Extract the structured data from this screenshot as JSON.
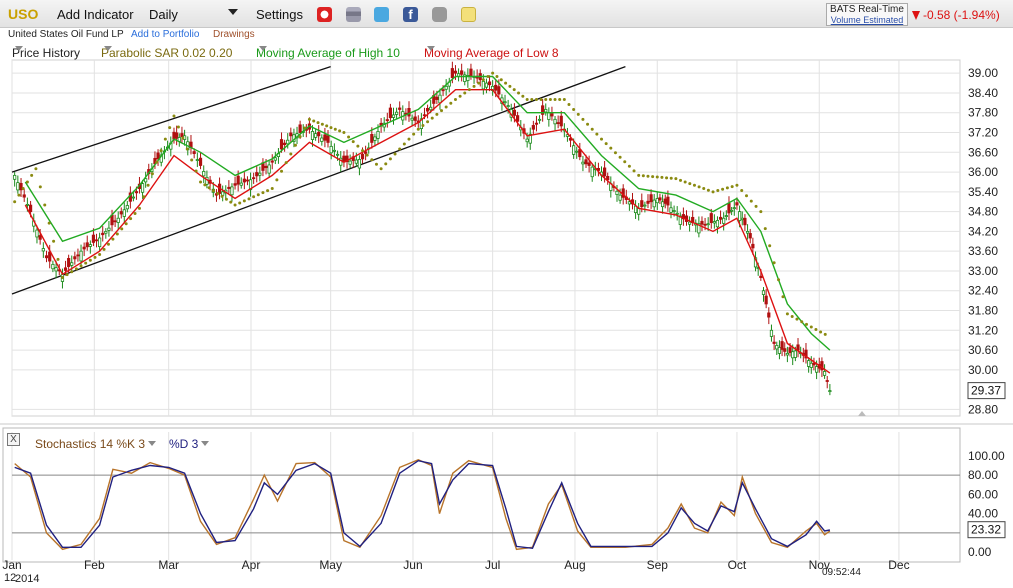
{
  "toolbar": {
    "symbol": "USO",
    "add_indicator": "Add Indicator",
    "timeframe": "Daily",
    "settings": "Settings",
    "icons": [
      "alarm-clock-icon",
      "stack-icon",
      "twitter-icon",
      "facebook-icon",
      "camera-icon",
      "note-icon"
    ]
  },
  "quote": {
    "feed": "BATS Real-Time",
    "feed_sub": "Volume Estimated",
    "change": "-0.58 (-1.94%)",
    "down_color": "#dd1111"
  },
  "subbar": {
    "name": "United States Oil Fund LP",
    "add_portfolio": "Add to Portfolio",
    "drawings": "Drawings"
  },
  "legend": {
    "price_history": "Price History",
    "psar": "Parabolic SAR 0.02 0.20",
    "ma_high": "Moving Average of High 10",
    "ma_low": "Moving Average of Low 8"
  },
  "stoch_legend": {
    "k": "Stochastics 14 %K 3",
    "d": "%D 3",
    "close_box": "X"
  },
  "colors": {
    "up_candle": "#1a8a1a",
    "down_candle": "#b01010",
    "ma_high": "#22aa22",
    "ma_low": "#dd1111",
    "psar": "#8a8a10",
    "stoch_k": "#b8742a",
    "stoch_d": "#202080",
    "grid": "#e2e2e2"
  },
  "chart_data": [
    {
      "type": "candlestick",
      "title": "USO",
      "x_labels": [
        "Jan",
        "Feb",
        "Mar",
        "Apr",
        "May",
        "Jun",
        "Jul",
        "Aug",
        "Sep",
        "Oct",
        "Nov",
        "Dec"
      ],
      "year_label": "2014",
      "y_ticks": [
        39.0,
        38.4,
        37.8,
        37.2,
        36.6,
        36.0,
        35.4,
        34.8,
        34.2,
        33.6,
        33.0,
        32.4,
        31.8,
        31.2,
        30.6,
        30.0,
        29.37,
        28.8
      ],
      "last_price": "29.37",
      "ylim": [
        28.6,
        39.4
      ],
      "close_path": [
        [
          "2014-01-02",
          35.9
        ],
        [
          "2014-01-08",
          34.8
        ],
        [
          "2014-01-14",
          33.4
        ],
        [
          "2014-01-20",
          32.9
        ],
        [
          "2014-01-27",
          33.6
        ],
        [
          "2014-02-03",
          34.0
        ],
        [
          "2014-02-10",
          34.6
        ],
        [
          "2014-02-18",
          35.5
        ],
        [
          "2014-02-25",
          36.4
        ],
        [
          "2014-03-03",
          37.0
        ],
        [
          "2014-03-07",
          37.1
        ],
        [
          "2014-03-13",
          36.2
        ],
        [
          "2014-03-19",
          35.3
        ],
        [
          "2014-03-26",
          35.6
        ],
        [
          "2014-04-02",
          35.8
        ],
        [
          "2014-04-09",
          36.3
        ],
        [
          "2014-04-16",
          37.1
        ],
        [
          "2014-04-23",
          37.3
        ],
        [
          "2014-04-30",
          36.9
        ],
        [
          "2014-05-06",
          36.3
        ],
        [
          "2014-05-13",
          36.4
        ],
        [
          "2014-05-20",
          37.4
        ],
        [
          "2014-05-27",
          37.9
        ],
        [
          "2014-06-03",
          37.5
        ],
        [
          "2014-06-10",
          38.2
        ],
        [
          "2014-06-17",
          39.0
        ],
        [
          "2014-06-24",
          38.9
        ],
        [
          "2014-07-01",
          38.6
        ],
        [
          "2014-07-08",
          37.9
        ],
        [
          "2014-07-14",
          37.0
        ],
        [
          "2014-07-21",
          37.9
        ],
        [
          "2014-07-28",
          37.3
        ],
        [
          "2014-08-04",
          36.3
        ],
        [
          "2014-08-11",
          36.0
        ],
        [
          "2014-08-18",
          35.3
        ],
        [
          "2014-08-25",
          34.9
        ],
        [
          "2014-09-01",
          35.2
        ],
        [
          "2014-09-05",
          35.0
        ],
        [
          "2014-09-12",
          34.5
        ],
        [
          "2014-09-19",
          34.4
        ],
        [
          "2014-09-26",
          34.6
        ],
        [
          "2014-10-01",
          35.0
        ],
        [
          "2014-10-06",
          34.0
        ],
        [
          "2014-10-10",
          32.8
        ],
        [
          "2014-10-15",
          30.8
        ],
        [
          "2014-10-20",
          30.5
        ],
        [
          "2014-10-24",
          30.6
        ],
        [
          "2014-10-29",
          30.2
        ],
        [
          "2014-11-03",
          29.95
        ],
        [
          "2014-11-05",
          29.37
        ]
      ],
      "ma_high_10": [
        [
          "2014-01-06",
          35.7
        ],
        [
          "2014-01-20",
          33.9
        ],
        [
          "2014-02-03",
          34.3
        ],
        [
          "2014-02-18",
          35.6
        ],
        [
          "2014-03-03",
          37.0
        ],
        [
          "2014-03-13",
          36.6
        ],
        [
          "2014-03-26",
          35.9
        ],
        [
          "2014-04-09",
          36.4
        ],
        [
          "2014-04-23",
          37.4
        ],
        [
          "2014-05-06",
          36.9
        ],
        [
          "2014-05-20",
          37.4
        ],
        [
          "2014-06-03",
          37.9
        ],
        [
          "2014-06-17",
          38.9
        ],
        [
          "2014-07-01",
          38.9
        ],
        [
          "2014-07-14",
          37.8
        ],
        [
          "2014-07-28",
          37.8
        ],
        [
          "2014-08-11",
          36.5
        ],
        [
          "2014-08-25",
          35.5
        ],
        [
          "2014-09-08",
          35.3
        ],
        [
          "2014-09-22",
          34.8
        ],
        [
          "2014-10-01",
          35.2
        ],
        [
          "2014-10-10",
          34.2
        ],
        [
          "2014-10-20",
          32.0
        ],
        [
          "2014-10-29",
          31.1
        ],
        [
          "2014-11-05",
          30.6
        ]
      ],
      "ma_low_8": [
        [
          "2014-01-06",
          35.0
        ],
        [
          "2014-01-20",
          32.9
        ],
        [
          "2014-02-03",
          33.6
        ],
        [
          "2014-02-18",
          35.0
        ],
        [
          "2014-03-03",
          36.5
        ],
        [
          "2014-03-13",
          35.9
        ],
        [
          "2014-03-26",
          35.2
        ],
        [
          "2014-04-09",
          35.9
        ],
        [
          "2014-04-23",
          36.9
        ],
        [
          "2014-05-06",
          36.3
        ],
        [
          "2014-05-20",
          36.9
        ],
        [
          "2014-06-03",
          37.5
        ],
        [
          "2014-06-17",
          38.5
        ],
        [
          "2014-07-01",
          38.5
        ],
        [
          "2014-07-14",
          37.1
        ],
        [
          "2014-07-28",
          37.3
        ],
        [
          "2014-08-11",
          35.9
        ],
        [
          "2014-08-25",
          34.9
        ],
        [
          "2014-09-08",
          34.7
        ],
        [
          "2014-09-22",
          34.2
        ],
        [
          "2014-10-01",
          34.6
        ],
        [
          "2014-10-10",
          33.0
        ],
        [
          "2014-10-20",
          30.8
        ],
        [
          "2014-10-29",
          30.3
        ],
        [
          "2014-11-05",
          29.9
        ]
      ],
      "psar_points": [
        [
          "2014-01-02",
          35.1
        ],
        [
          "2014-01-10",
          36.1
        ],
        [
          "2014-01-20",
          32.8
        ],
        [
          "2014-02-03",
          33.5
        ],
        [
          "2014-02-18",
          34.9
        ],
        [
          "2014-03-03",
          37.7
        ],
        [
          "2014-03-13",
          35.7
        ],
        [
          "2014-03-26",
          35.0
        ],
        [
          "2014-04-09",
          35.5
        ],
        [
          "2014-04-23",
          37.6
        ],
        [
          "2014-05-06",
          37.2
        ],
        [
          "2014-05-20",
          36.1
        ],
        [
          "2014-06-03",
          37.3
        ],
        [
          "2014-06-17",
          38.2
        ],
        [
          "2014-07-01",
          39.0
        ],
        [
          "2014-07-14",
          38.2
        ],
        [
          "2014-07-28",
          38.2
        ],
        [
          "2014-08-11",
          37.0
        ],
        [
          "2014-08-25",
          35.9
        ],
        [
          "2014-09-08",
          35.8
        ],
        [
          "2014-09-22",
          35.4
        ],
        [
          "2014-10-01",
          35.6
        ],
        [
          "2014-10-10",
          34.8
        ],
        [
          "2014-10-20",
          31.7
        ],
        [
          "2014-10-29",
          31.3
        ],
        [
          "2014-11-05",
          31.0
        ]
      ],
      "trend_channel": {
        "upper": [
          [
            "2014-01-01",
            36.0
          ],
          [
            "2014-05-01",
            39.2
          ]
        ],
        "lower": [
          [
            "2014-01-01",
            32.3
          ],
          [
            "2014-08-20",
            39.2
          ]
        ]
      }
    },
    {
      "type": "line",
      "title": "Stochastics 14 %K 3 %D 3",
      "y_ticks": [
        100.0,
        80.0,
        60.0,
        40.0,
        20.0,
        0.0
      ],
      "ylim": [
        -4,
        104
      ],
      "reference_lines": [
        80,
        20
      ],
      "last_value": "23.32",
      "series": [
        {
          "name": "%K",
          "points": [
            [
              "2014-01-02",
              92
            ],
            [
              "2014-01-08",
              78
            ],
            [
              "2014-01-14",
              20
            ],
            [
              "2014-01-20",
              3
            ],
            [
              "2014-01-27",
              8
            ],
            [
              "2014-02-03",
              35
            ],
            [
              "2014-02-08",
              86
            ],
            [
              "2014-02-15",
              82
            ],
            [
              "2014-02-22",
              93
            ],
            [
              "2014-03-01",
              87
            ],
            [
              "2014-03-07",
              80
            ],
            [
              "2014-03-13",
              32
            ],
            [
              "2014-03-19",
              8
            ],
            [
              "2014-03-26",
              15
            ],
            [
              "2014-04-02",
              55
            ],
            [
              "2014-04-06",
              80
            ],
            [
              "2014-04-11",
              53
            ],
            [
              "2014-04-18",
              92
            ],
            [
              "2014-04-25",
              93
            ],
            [
              "2014-05-01",
              78
            ],
            [
              "2014-05-06",
              12
            ],
            [
              "2014-05-12",
              5
            ],
            [
              "2014-05-20",
              38
            ],
            [
              "2014-05-27",
              88
            ],
            [
              "2014-06-03",
              96
            ],
            [
              "2014-06-08",
              90
            ],
            [
              "2014-06-11",
              40
            ],
            [
              "2014-06-16",
              82
            ],
            [
              "2014-06-22",
              95
            ],
            [
              "2014-07-01",
              88
            ],
            [
              "2014-07-06",
              35
            ],
            [
              "2014-07-10",
              3
            ],
            [
              "2014-07-16",
              5
            ],
            [
              "2014-07-22",
              50
            ],
            [
              "2014-07-27",
              70
            ],
            [
              "2014-08-02",
              22
            ],
            [
              "2014-08-07",
              5
            ],
            [
              "2014-08-20",
              5
            ],
            [
              "2014-08-30",
              8
            ],
            [
              "2014-09-05",
              25
            ],
            [
              "2014-09-10",
              50
            ],
            [
              "2014-09-15",
              25
            ],
            [
              "2014-09-20",
              20
            ],
            [
              "2014-09-25",
              52
            ],
            [
              "2014-09-30",
              38
            ],
            [
              "2014-10-03",
              78
            ],
            [
              "2014-10-08",
              40
            ],
            [
              "2014-10-14",
              10
            ],
            [
              "2014-10-20",
              5
            ],
            [
              "2014-10-27",
              22
            ],
            [
              "2014-10-31",
              30
            ],
            [
              "2014-11-03",
              18
            ],
            [
              "2014-11-05",
              22
            ]
          ]
        },
        {
          "name": "%D",
          "points": [
            [
              "2014-01-02",
              88
            ],
            [
              "2014-01-08",
              82
            ],
            [
              "2014-01-14",
              28
            ],
            [
              "2014-01-20",
              5
            ],
            [
              "2014-01-27",
              5
            ],
            [
              "2014-02-03",
              28
            ],
            [
              "2014-02-08",
              78
            ],
            [
              "2014-02-15",
              85
            ],
            [
              "2014-02-22",
              90
            ],
            [
              "2014-03-01",
              88
            ],
            [
              "2014-03-07",
              82
            ],
            [
              "2014-03-13",
              40
            ],
            [
              "2014-03-19",
              10
            ],
            [
              "2014-03-26",
              12
            ],
            [
              "2014-04-02",
              45
            ],
            [
              "2014-04-06",
              72
            ],
            [
              "2014-04-11",
              60
            ],
            [
              "2014-04-18",
              85
            ],
            [
              "2014-04-25",
              92
            ],
            [
              "2014-05-01",
              82
            ],
            [
              "2014-05-06",
              20
            ],
            [
              "2014-05-12",
              6
            ],
            [
              "2014-05-20",
              30
            ],
            [
              "2014-05-27",
              82
            ],
            [
              "2014-06-03",
              95
            ],
            [
              "2014-06-08",
              92
            ],
            [
              "2014-06-11",
              50
            ],
            [
              "2014-06-16",
              75
            ],
            [
              "2014-06-22",
              92
            ],
            [
              "2014-07-01",
              90
            ],
            [
              "2014-07-06",
              45
            ],
            [
              "2014-07-10",
              6
            ],
            [
              "2014-07-16",
              4
            ],
            [
              "2014-07-22",
              42
            ],
            [
              "2014-07-27",
              72
            ],
            [
              "2014-08-02",
              30
            ],
            [
              "2014-08-07",
              6
            ],
            [
              "2014-08-20",
              6
            ],
            [
              "2014-08-30",
              6
            ],
            [
              "2014-09-05",
              20
            ],
            [
              "2014-09-10",
              46
            ],
            [
              "2014-09-15",
              30
            ],
            [
              "2014-09-20",
              22
            ],
            [
              "2014-09-25",
              48
            ],
            [
              "2014-09-30",
              42
            ],
            [
              "2014-10-03",
              72
            ],
            [
              "2014-10-08",
              45
            ],
            [
              "2014-10-14",
              14
            ],
            [
              "2014-10-20",
              6
            ],
            [
              "2014-10-27",
              18
            ],
            [
              "2014-10-31",
              32
            ],
            [
              "2014-11-03",
              22
            ],
            [
              "2014-11-05",
              23
            ]
          ]
        }
      ]
    }
  ],
  "footer": {
    "year": "2014",
    "axis_marker": "12",
    "time": "09:52:44"
  }
}
